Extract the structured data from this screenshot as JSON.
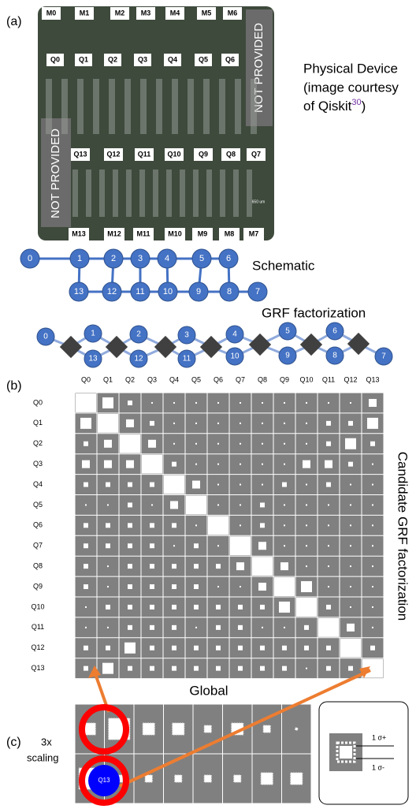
{
  "panels": [
    "(a)",
    "(b)",
    "(c)"
  ],
  "device": {
    "top_labels": [
      "M0",
      "M1",
      "M2",
      "M3",
      "M4",
      "M5",
      "M6"
    ],
    "upper_qubits": [
      "Q0",
      "Q1",
      "Q2",
      "Q3",
      "Q4",
      "Q5",
      "Q6"
    ],
    "lower_qubits": [
      "Q13",
      "Q12",
      "Q11",
      "Q10",
      "Q9",
      "Q8",
      "Q7"
    ],
    "bottom_labels": [
      "M13",
      "M12",
      "M11",
      "M10",
      "M9",
      "M8",
      "M7"
    ],
    "masks": [
      "NOT PROVIDED",
      "NOT PROVIDED"
    ],
    "scale": "650 um",
    "caption": [
      "Physical Device",
      "(image courtesy",
      "of Qiskit",
      "30",
      ")"
    ]
  },
  "schematic": {
    "label": "Schematic",
    "top": [
      "0",
      "1",
      "2",
      "3",
      "4",
      "5",
      "6"
    ],
    "bottom": [
      "13",
      "12",
      "11",
      "10",
      "9",
      "8",
      "7"
    ]
  },
  "grf": {
    "label": "GRF factorization",
    "nodes": [
      "0",
      "1",
      "13",
      "2",
      "12",
      "3",
      "11",
      "4",
      "10",
      "5",
      "9",
      "6",
      "8",
      "7"
    ]
  },
  "matrix": {
    "labels": [
      "Q0",
      "Q1",
      "Q2",
      "Q3",
      "Q4",
      "Q5",
      "Q6",
      "Q7",
      "Q8",
      "Q9",
      "Q10",
      "Q11",
      "Q12",
      "Q13"
    ],
    "title": "Candidate GRF factorization",
    "caption": "Global",
    "rows": [
      [
        4,
        3,
        1,
        0,
        0,
        0,
        0,
        0,
        0,
        0,
        0,
        0,
        0,
        2
      ],
      [
        3,
        4,
        2,
        1,
        0,
        0,
        0,
        0,
        0,
        0,
        0,
        1,
        1,
        3
      ],
      [
        1,
        2,
        4,
        2,
        0,
        0,
        0,
        0,
        0,
        0,
        0,
        1,
        3,
        1
      ],
      [
        2,
        2,
        2,
        4,
        1,
        0,
        0,
        0,
        0,
        0,
        2,
        2,
        1,
        0
      ],
      [
        1,
        1,
        1,
        1,
        4,
        2,
        0,
        0,
        0,
        1,
        0,
        1,
        0,
        0
      ],
      [
        0,
        0,
        1,
        0,
        2,
        4,
        0,
        0,
        1,
        0,
        0,
        0,
        0,
        0
      ],
      [
        1,
        1,
        1,
        1,
        1,
        0,
        4,
        0,
        1,
        0,
        0,
        0,
        0,
        0
      ],
      [
        1,
        1,
        1,
        1,
        0,
        1,
        0,
        4,
        2,
        0,
        0,
        0,
        0,
        0
      ],
      [
        1,
        0,
        1,
        1,
        1,
        1,
        1,
        2,
        4,
        2,
        0,
        0,
        0,
        0
      ],
      [
        1,
        0,
        1,
        1,
        1,
        1,
        0,
        0,
        2,
        4,
        3,
        0,
        0,
        0
      ],
      [
        0,
        1,
        1,
        1,
        1,
        1,
        1,
        1,
        1,
        3,
        4,
        1,
        0,
        0
      ],
      [
        0,
        0,
        1,
        1,
        1,
        0,
        1,
        1,
        0,
        0,
        1,
        4,
        2,
        0
      ],
      [
        1,
        1,
        3,
        1,
        1,
        1,
        1,
        1,
        1,
        1,
        1,
        1,
        4,
        1
      ],
      [
        1,
        3,
        1,
        1,
        1,
        1,
        1,
        1,
        1,
        1,
        0,
        1,
        1,
        4
      ]
    ]
  },
  "scaling": {
    "label": [
      "3x",
      "scaling"
    ],
    "node": "Q13",
    "legend": [
      "1 σ+",
      "1 σ-"
    ],
    "rows": [
      [
        2,
        4,
        2,
        2,
        1,
        2,
        1,
        0
      ],
      [
        4,
        1,
        1,
        1,
        1,
        1,
        2,
        2
      ]
    ]
  }
}
